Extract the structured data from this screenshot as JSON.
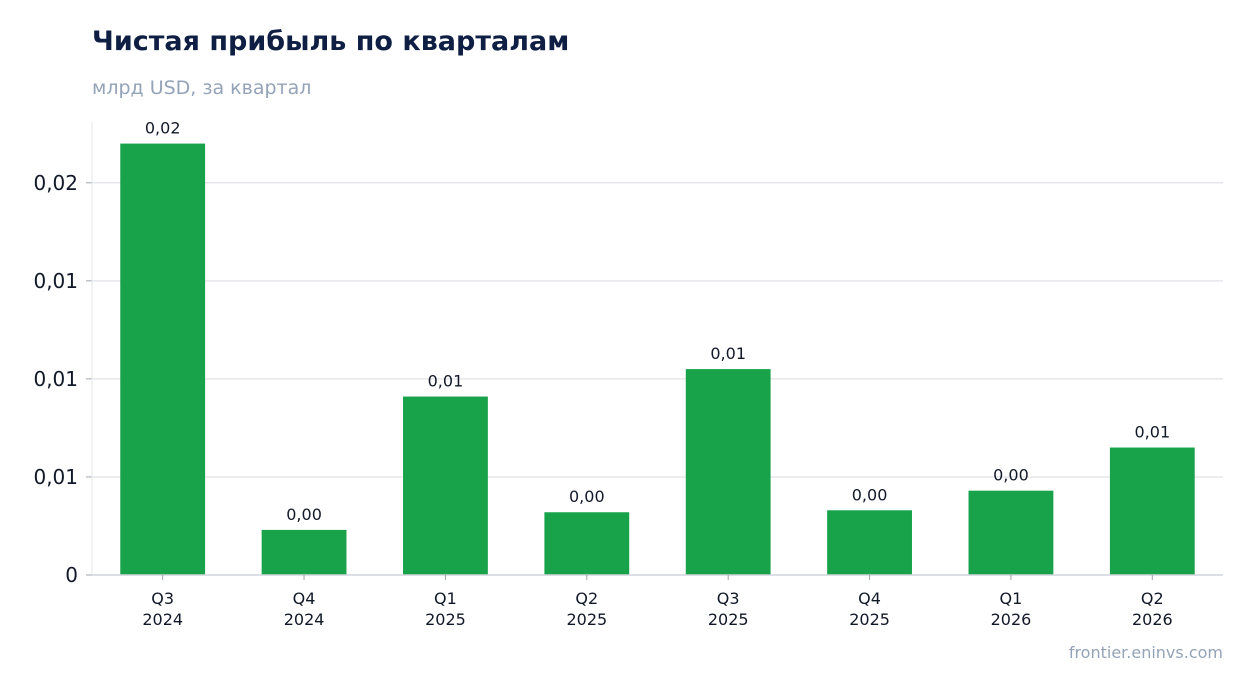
{
  "chart_data": {
    "type": "bar",
    "title": "Чистая прибыль по кварталам",
    "subtitle": "млрд USD, за квартал",
    "source": "frontier.eninvs.com",
    "categories": [
      [
        "Q3",
        "2024"
      ],
      [
        "Q4",
        "2024"
      ],
      [
        "Q1",
        "2025"
      ],
      [
        "Q2",
        "2025"
      ],
      [
        "Q3",
        "2025"
      ],
      [
        "Q4",
        "2025"
      ],
      [
        "Q1",
        "2026"
      ],
      [
        "Q2",
        "2026"
      ]
    ],
    "values": [
      0.022,
      0.0023,
      0.0091,
      0.0032,
      0.0105,
      0.0033,
      0.0043,
      0.0065
    ],
    "data_labels": [
      "0,02",
      "0,00",
      "0,01",
      "0,00",
      "0,01",
      "0,00",
      "0,00",
      "0,01"
    ],
    "yticks": [
      0,
      0.005,
      0.01,
      0.015,
      0.02
    ],
    "ytick_labels": [
      "0",
      "0,01",
      "0,01",
      "0,01",
      "0,02"
    ],
    "ylim": [
      0,
      0.0231
    ],
    "bar_color": "#18a34a",
    "grid": true,
    "legend": "none"
  }
}
